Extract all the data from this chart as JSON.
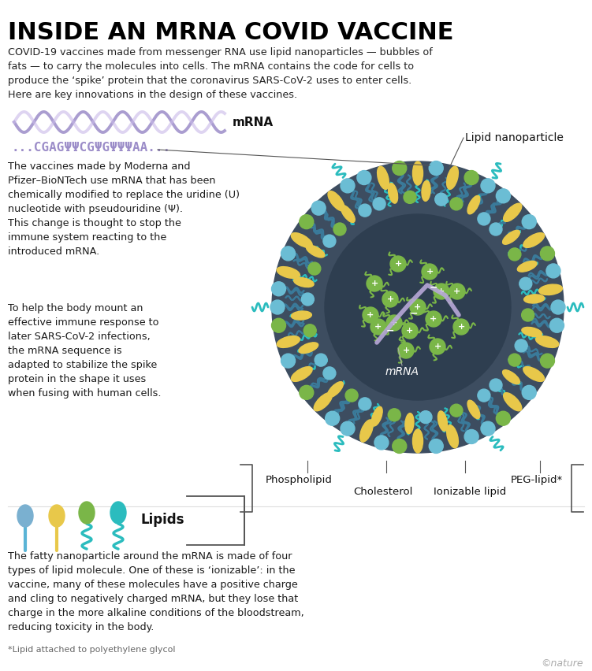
{
  "title": "INSIDE AN MRNA COVID VACCINE",
  "subtitle": "COVID-19 vaccines made from messenger RNA use lipid nanoparticles — bubbles of\nfats — to carry the molecules into cells. The mRNA contains the code for cells to\nproduce the ‘spike’ protein that the coronavirus SARS-CoV-2 uses to enter cells.\nHere are key innovations in the design of these vaccines.",
  "mrna_label": "mRNA",
  "mrna_sequence": "...CGAGΨΨCGΨGΨΨΨAA...",
  "text1": "The vaccines made by Moderna and\nPfizer–BioNTech use mRNA that has been\nchemically modified to replace the uridine (U)\nnucleotide with pseudouridine (Ψ).\nThis change is thought to stop the\nimmune system reacting to the\nintroduced mRNA.",
  "text2": "To help the body mount an\neffective immune response to\nlater SARS-CoV-2 infections,\nthe mRNA sequence is\nadapted to stabilize the spike\nprotein in the shape it uses\nwhen fusing with human cells.",
  "lipid_nanoparticle_label": "Lipid nanoparticle",
  "mrna_inside_label": "mRNA",
  "phospholipid_label": "Phospholipid",
  "cholesterol_label": "Cholesterol",
  "ionizable_label": "Ionizable lipid",
  "peg_label": "PEG-lipid*",
  "lipids_label": "Lipids",
  "text3": "The fatty nanoparticle around the mRNA is made of four\ntypes of lipid molecule. One of these is ‘ionizable’: in the\nvaccine, many of these molecules have a positive charge\nand cling to negatively charged mRNA, but they lose that\ncharge in the more alkaline conditions of the bloodstream,\nreducing toxicity in the body.",
  "footnote": "*Lipid attached to polyethylene glycol",
  "copyright": "©nature",
  "bg_color": "#ffffff",
  "title_color": "#000000",
  "particle_bg": "#3d4d60",
  "particle_inner": "#2e3e50",
  "blue_head": "#6bbdd4",
  "green_head": "#7ab648",
  "yellow_body": "#e8c84a",
  "teal_peg": "#2bbcbe",
  "mrna_strand": "#b8a8d8",
  "wave_color": "#9b8cc8",
  "sequence_color": "#9b8cc8",
  "text_color": "#1a1a1a"
}
